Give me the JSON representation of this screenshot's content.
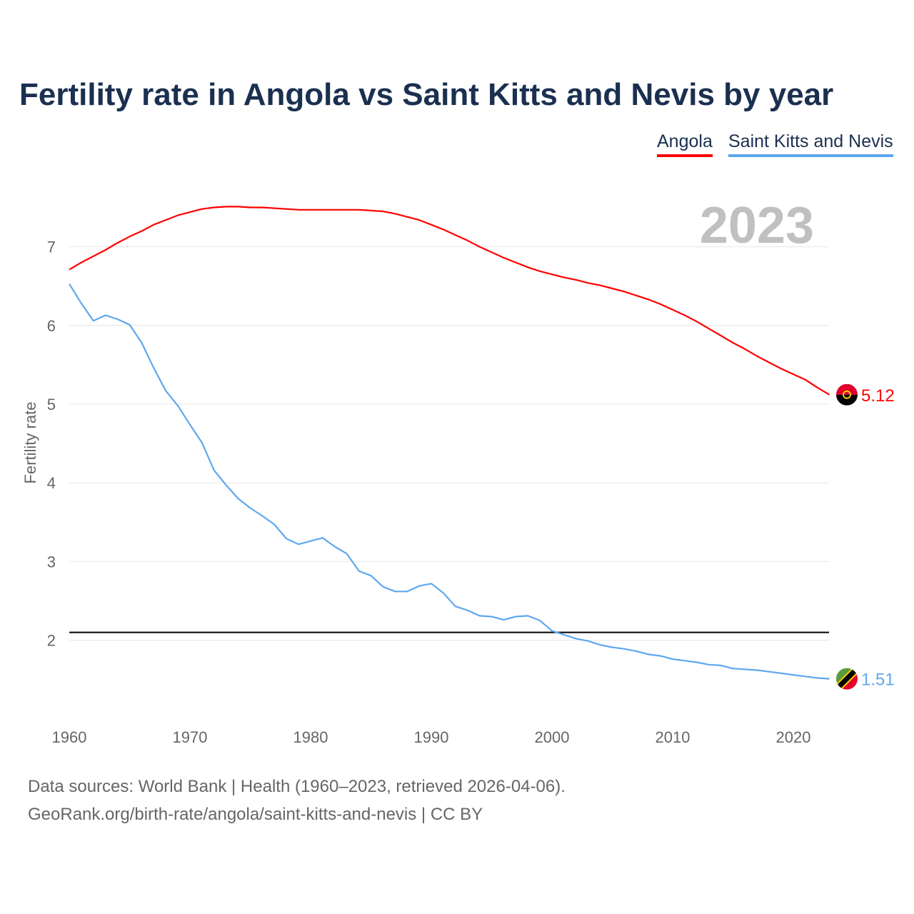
{
  "chart_data": {
    "type": "line",
    "title": "Fertility rate in Angola vs Saint Kitts and Nevis by year",
    "xlabel": "",
    "ylabel": "Fertility rate",
    "xlim": [
      1960,
      2023
    ],
    "ylim": [
      1.1,
      7.9
    ],
    "x_ticks": [
      1960,
      1970,
      1980,
      1990,
      2000,
      2010,
      2020
    ],
    "y_ticks": [
      2,
      3,
      4,
      5,
      6,
      7
    ],
    "grid": true,
    "legend_position": "top-right",
    "year_label": "2023",
    "reference_line": 2.1,
    "x_start": 1960,
    "series": [
      {
        "name": "Angola",
        "color": "#ff0000",
        "end_label": "5.12",
        "flag": "angola",
        "values": [
          6.71,
          6.8,
          6.88,
          6.96,
          7.05,
          7.13,
          7.2,
          7.28,
          7.34,
          7.4,
          7.44,
          7.48,
          7.5,
          7.51,
          7.51,
          7.5,
          7.5,
          7.49,
          7.48,
          7.47,
          7.47,
          7.47,
          7.47,
          7.47,
          7.47,
          7.46,
          7.45,
          7.42,
          7.38,
          7.34,
          7.28,
          7.22,
          7.15,
          7.08,
          7.0,
          6.93,
          6.86,
          6.8,
          6.74,
          6.69,
          6.65,
          6.61,
          6.58,
          6.54,
          6.51,
          6.47,
          6.43,
          6.38,
          6.33,
          6.27,
          6.2,
          6.13,
          6.05,
          5.96,
          5.87,
          5.78,
          5.7,
          5.61,
          5.53,
          5.45,
          5.38,
          5.31,
          5.21,
          5.12
        ]
      },
      {
        "name": "Saint Kitts and Nevis",
        "color": "#5ea8ee",
        "end_label": "1.51",
        "flag": "saint-kitts-and-nevis",
        "values": [
          6.53,
          6.28,
          6.06,
          6.13,
          6.08,
          6.01,
          5.78,
          5.46,
          5.17,
          4.98,
          4.74,
          4.51,
          4.16,
          3.97,
          3.8,
          3.68,
          3.58,
          3.47,
          3.29,
          3.22,
          3.26,
          3.3,
          3.19,
          3.1,
          2.88,
          2.82,
          2.68,
          2.62,
          2.62,
          2.69,
          2.72,
          2.6,
          2.43,
          2.38,
          2.31,
          2.3,
          2.26,
          2.3,
          2.31,
          2.25,
          2.12,
          2.07,
          2.02,
          1.99,
          1.94,
          1.91,
          1.89,
          1.86,
          1.82,
          1.8,
          1.76,
          1.74,
          1.72,
          1.69,
          1.68,
          1.64,
          1.63,
          1.62,
          1.6,
          1.58,
          1.56,
          1.54,
          1.52,
          1.51
        ]
      }
    ]
  },
  "footer": {
    "line1": "Data sources: World Bank | Health (1960–2023, retrieved 2026-04-06).",
    "line2": "GeoRank.org/birth-rate/angola/saint-kitts-and-nevis | CC BY"
  }
}
